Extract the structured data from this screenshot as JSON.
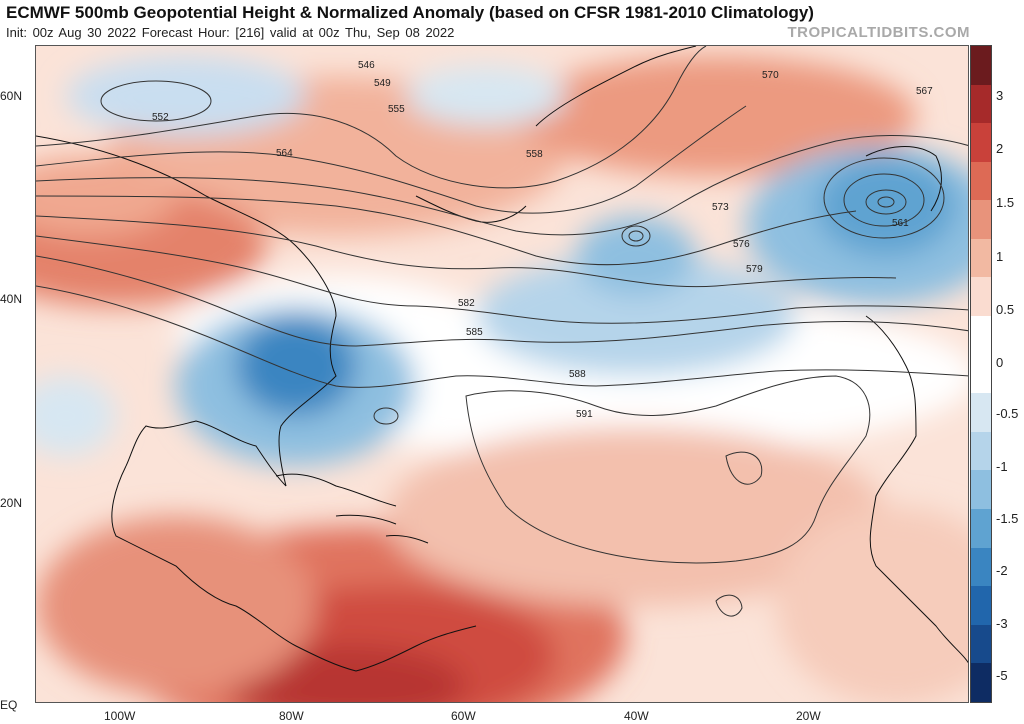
{
  "header": {
    "title": "ECMWF 500mb Geopotential Height & Normalized Anomaly (based on CFSR 1981-2010 Climatology)",
    "subtitle": "Init: 00z Aug 30 2022   Forecast Hour: [216]   valid at 00z Thu, Sep 08 2022",
    "brand": "TROPICALTIDBITS.COM"
  },
  "map": {
    "lat_labels": [
      "60N",
      "40N",
      "20N",
      "EQ"
    ],
    "lon_labels": [
      "100W",
      "80W",
      "60W",
      "40W",
      "20W"
    ],
    "contour_labels": [
      "546",
      "549",
      "552",
      "555",
      "558",
      "561",
      "564",
      "567",
      "570",
      "573",
      "576",
      "579",
      "582",
      "585",
      "588",
      "591"
    ],
    "contour_color": "#333333"
  },
  "colorbar": {
    "ticks": [
      "3",
      "2",
      "1.5",
      "1",
      "0.5",
      "0",
      "-0.5",
      "-1",
      "-1.5",
      "-2",
      "-3",
      "-5"
    ],
    "colors": [
      "#6b1b1e",
      "#a62a2a",
      "#c9413a",
      "#dd6a55",
      "#e8937b",
      "#f2b9a2",
      "#fadcd0",
      "#ffffff",
      "#ffffff",
      "#d7e7f2",
      "#b5d4ea",
      "#8ebfe0",
      "#5fa3d1",
      "#3a85c1",
      "#2166ac",
      "#174a8c",
      "#0e2c63"
    ]
  }
}
